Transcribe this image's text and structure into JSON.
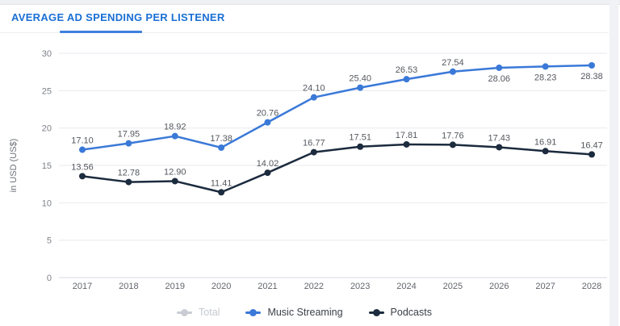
{
  "header": {
    "title": "AVERAGE AD SPENDING PER LISTENER"
  },
  "chart_data": {
    "type": "line",
    "title": "AVERAGE AD SPENDING PER LISTENER",
    "xlabel": "",
    "ylabel": "in USD (US$)",
    "categories": [
      "2017",
      "2018",
      "2019",
      "2020",
      "2021",
      "2022",
      "2023",
      "2024",
      "2025",
      "2026",
      "2027",
      "2028"
    ],
    "ylim": [
      0,
      30
    ],
    "yticks": [
      0,
      5,
      10,
      15,
      20,
      25,
      30
    ],
    "grid": true,
    "legend_position": "bottom",
    "series": [
      {
        "name": "Total",
        "visible": false,
        "disabled": true,
        "color": "#c9cdd3",
        "values": []
      },
      {
        "name": "Music Streaming",
        "visible": true,
        "disabled": false,
        "color": "#3a79d8",
        "values": [
          17.1,
          17.95,
          18.92,
          17.38,
          20.76,
          24.1,
          25.4,
          26.53,
          27.54,
          28.06,
          28.23,
          28.38
        ],
        "labels": [
          "17.10",
          "17.95",
          "18.92",
          "17.38",
          "20.76",
          "24.10",
          "25.40",
          "26.53",
          "27.54",
          "28.06",
          "28.23",
          "28.38"
        ],
        "label_pos": [
          "above",
          "above",
          "above",
          "above",
          "above",
          "above",
          "above",
          "above",
          "above",
          "below",
          "below",
          "below"
        ]
      },
      {
        "name": "Podcasts",
        "visible": true,
        "disabled": false,
        "color": "#1c2b3e",
        "values": [
          13.56,
          12.78,
          12.9,
          11.41,
          14.02,
          16.77,
          17.51,
          17.81,
          17.76,
          17.43,
          16.91,
          16.47
        ],
        "labels": [
          "13.56",
          "12.78",
          "12.90",
          "11.41",
          "14.02",
          "16.77",
          "17.51",
          "17.81",
          "17.76",
          "17.43",
          "16.91",
          "16.47"
        ],
        "label_pos": [
          "above",
          "above",
          "above",
          "above",
          "above",
          "above",
          "above",
          "above",
          "above",
          "above",
          "above",
          "above"
        ]
      }
    ]
  },
  "colors": {
    "title_blue": "#1a6fd4",
    "tab_indicator": "#3f80de",
    "gridline": "#e9eaef",
    "zero_line": "#d6d9e0",
    "tick_text": "#7d8189",
    "axis_title_text": "#6d7177",
    "category_text": "#63666d",
    "data_label_text": "#55585e"
  }
}
